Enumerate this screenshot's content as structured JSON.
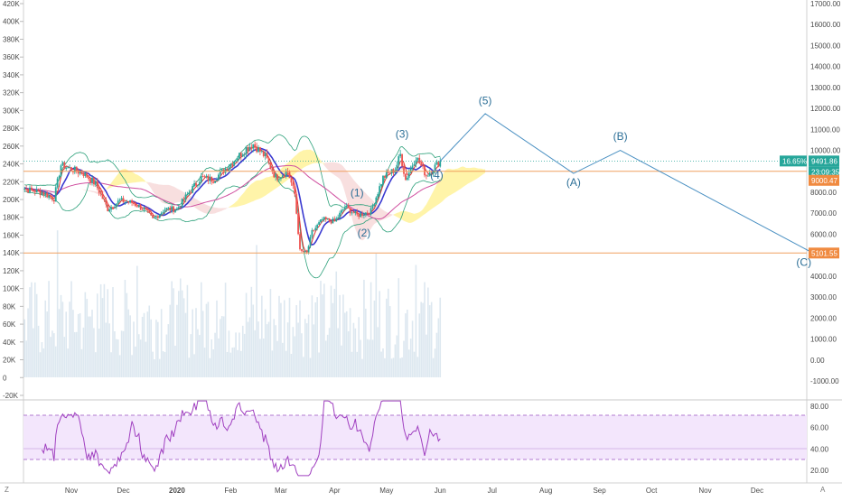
{
  "colors": {
    "wave": "#4a90c2",
    "wave_label": "#2c6f97",
    "support_line": "#f0a060",
    "price_tag": "#26a69a",
    "level_tag": "#f08a40",
    "rsi_line": "#a040c0",
    "rsi_band": "#f3e6fc",
    "candle_up": "#26a69a",
    "candle_down": "#ef5350",
    "bollinger": "#2ca07a",
    "cloud_pos": "#fff3a0",
    "cloud_neg": "#f7dcdc",
    "ma_blue": "#3a3ad0",
    "ma_pink": "#d050a0",
    "volume": "#dde8f0"
  },
  "corner_labels": {
    "bottom_left": "Z",
    "bottom_right": "A"
  },
  "left_axis": [
    "420K",
    "400K",
    "380K",
    "360K",
    "340K",
    "320K",
    "300K",
    "280K",
    "260K",
    "240K",
    "220K",
    "200K",
    "180K",
    "160K",
    "140K",
    "120K",
    "100K",
    "80K",
    "60K",
    "40K",
    "20K",
    "0",
    "-20K"
  ],
  "right_axis": [
    "17000.00",
    "16000.00",
    "15000.00",
    "14000.00",
    "13000.00",
    "12000.00",
    "11000.00",
    "10000.00",
    "9000.00",
    "8000.00",
    "7000.00",
    "6000.00",
    "5000.00",
    "4000.00",
    "3000.00",
    "2000.00",
    "1000.00",
    "0.00",
    "-1000.00"
  ],
  "rsi_axis": [
    "80.00",
    "60.00",
    "40.00",
    "20.00"
  ],
  "x_axis": [
    "Nov",
    "Dec",
    "2020",
    "Feb",
    "Mar",
    "Apr",
    "May",
    "Jun",
    "Jul",
    "Aug",
    "Sep",
    "Oct",
    "Nov",
    "Dec"
  ],
  "price_tags": {
    "change": "16.65%",
    "price": "9491.86",
    "countdown": "23:09:35",
    "resistance": "9000.47",
    "support": "5101.55"
  },
  "wave_labels": [
    "(1)",
    "(2)",
    "(3)",
    "(4)",
    "(5)",
    "(A)",
    "(B)",
    "(C)"
  ],
  "chart_data": {
    "type": "line",
    "title": "",
    "xlabel": "",
    "ylabel": "",
    "ylim": [
      -1000,
      17000
    ],
    "horizontal_levels": [
      9000.47,
      5101.55
    ],
    "last_price": 9491.86,
    "change_percent": "16.65%",
    "rsi_ylim": [
      10,
      90
    ],
    "rsi_bands": [
      70,
      30
    ],
    "series": [
      {
        "values": [
          {
            "x": "2020-06-01",
            "y": 9491.86
          },
          {
            "x": "2020-06-27",
            "y": 11750
          },
          {
            "x": "2020-08-17",
            "y": 8900
          },
          {
            "x": "2020-09-13",
            "y": 10000
          },
          {
            "x": "2020-12-31",
            "y": 5200
          }
        ]
      }
    ]
  }
}
